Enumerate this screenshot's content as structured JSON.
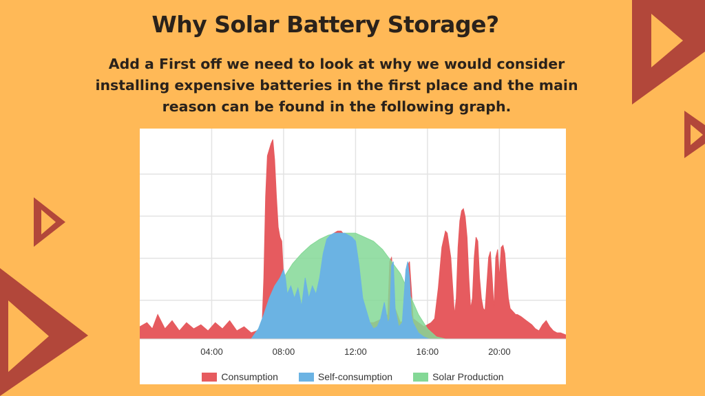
{
  "title": "Why Solar Battery Storage?",
  "subtitle": "Add a First off we need to look at why we would consider installing expensive batteries in the first place and the main reason can be found in the following graph.",
  "colors": {
    "background": "#FFB957",
    "triangle": "#B2473A",
    "consumption": "#E65B5F",
    "self_consumption": "#6BB3E3",
    "solar_production": "#84D896"
  },
  "chart_data": {
    "type": "area",
    "xlabel": "",
    "ylabel": "",
    "x_ticks": [
      "04:00",
      "08:00",
      "12:00",
      "16:00",
      "20:00"
    ],
    "x_tick_hours": [
      4,
      8,
      12,
      16,
      20
    ],
    "xlim": [
      0,
      23.7
    ],
    "ylim": [
      0,
      100
    ],
    "grid": true,
    "legend_position": "bottom",
    "series": [
      {
        "name": "Consumption",
        "color": "#E65B5F",
        "x": [
          0,
          0.4,
          0.7,
          1.0,
          1.4,
          1.8,
          2.2,
          2.6,
          3.0,
          3.4,
          3.8,
          4.2,
          4.6,
          5.0,
          5.4,
          5.8,
          6.2,
          6.5,
          6.8,
          6.9,
          7.0,
          7.1,
          7.2,
          7.3,
          7.4,
          7.5,
          7.6,
          7.7,
          7.8,
          7.9,
          8.0,
          8.1,
          8.3,
          8.6,
          9.0,
          9.5,
          10.0,
          10.3,
          10.5,
          10.7,
          10.8,
          11.0,
          11.2,
          11.3,
          11.4,
          11.5,
          11.6,
          11.8,
          12.0,
          12.5,
          13.0,
          13.5,
          13.8,
          13.9,
          14.0,
          14.1,
          14.2,
          14.5,
          14.8,
          14.9,
          15.0,
          15.1,
          15.2,
          15.5,
          15.8,
          16.0,
          16.2,
          16.4,
          16.6,
          16.8,
          17.0,
          17.1,
          17.3,
          17.5,
          17.6,
          17.7,
          17.8,
          17.9,
          18.0,
          18.1,
          18.2,
          18.3,
          18.4,
          18.5,
          18.6,
          18.7,
          18.8,
          18.9,
          19.0,
          19.1,
          19.2,
          19.4,
          19.5,
          19.6,
          19.7,
          19.8,
          19.9,
          20.0,
          20.1,
          20.2,
          20.3,
          20.4,
          20.5,
          20.6,
          20.7,
          20.8,
          20.9,
          21.0,
          21.2,
          21.5,
          21.8,
          22.0,
          22.2,
          22.4,
          22.6,
          22.8,
          23.0,
          23.2,
          23.4,
          23.7
        ],
        "values": [
          6,
          8,
          5,
          12,
          5,
          9,
          4,
          8,
          5,
          7,
          4,
          8,
          5,
          9,
          4,
          6,
          3,
          4,
          6,
          30,
          70,
          90,
          93,
          96,
          98,
          88,
          70,
          55,
          50,
          48,
          30,
          15,
          8,
          5,
          5,
          6,
          10,
          25,
          45,
          50,
          52,
          53,
          53,
          52,
          50,
          45,
          30,
          20,
          12,
          8,
          8,
          10,
          12,
          38,
          40,
          30,
          15,
          8,
          10,
          36,
          38,
          25,
          10,
          8,
          6,
          7,
          8,
          10,
          25,
          45,
          53,
          52,
          40,
          12,
          20,
          45,
          58,
          63,
          64,
          60,
          50,
          30,
          15,
          20,
          40,
          50,
          48,
          30,
          20,
          15,
          14,
          40,
          43,
          30,
          15,
          40,
          44,
          30,
          45,
          46,
          42,
          30,
          20,
          15,
          14,
          13,
          12,
          12,
          11,
          9,
          7,
          5,
          4,
          7,
          9,
          6,
          4,
          3,
          3,
          2
        ]
      },
      {
        "name": "Self-consumption",
        "color": "#6BB3E3",
        "x": [
          6.2,
          6.6,
          6.9,
          7.2,
          7.5,
          7.8,
          8.0,
          8.1,
          8.2,
          8.4,
          8.6,
          8.8,
          9.0,
          9.2,
          9.4,
          9.6,
          9.8,
          10.0,
          10.2,
          10.4,
          10.6,
          10.8,
          11.0,
          11.2,
          11.4,
          11.6,
          11.8,
          12.0,
          12.2,
          12.4,
          12.6,
          12.8,
          13.0,
          13.2,
          13.4,
          13.6,
          13.8,
          13.9,
          14.0,
          14.1,
          14.2,
          14.4,
          14.6,
          14.8,
          14.9,
          15.0,
          15.1,
          15.2,
          15.5,
          15.8,
          16.1
        ],
        "values": [
          0,
          5,
          12,
          20,
          26,
          30,
          34,
          30,
          22,
          26,
          20,
          25,
          16,
          30,
          20,
          26,
          22,
          30,
          42,
          49,
          51,
          52,
          52,
          52,
          52,
          51,
          50,
          48,
          36,
          20,
          14,
          8,
          5,
          6,
          10,
          18,
          8,
          10,
          36,
          38,
          15,
          6,
          8,
          34,
          38,
          30,
          12,
          8,
          3,
          1,
          0
        ]
      },
      {
        "name": "Solar Production",
        "color": "#84D896",
        "x": [
          6.2,
          6.6,
          7.0,
          7.5,
          8.0,
          8.5,
          9.0,
          9.5,
          10.0,
          10.5,
          11.0,
          11.5,
          12.0,
          12.5,
          13.0,
          13.5,
          14.0,
          14.5,
          15.0,
          15.5,
          16.0,
          16.5,
          17.0
        ],
        "values": [
          0,
          5,
          12,
          20,
          30,
          37,
          42,
          46,
          49,
          51,
          52,
          52,
          52,
          50,
          48,
          44,
          38,
          32,
          22,
          12,
          5,
          1,
          0
        ]
      }
    ]
  }
}
